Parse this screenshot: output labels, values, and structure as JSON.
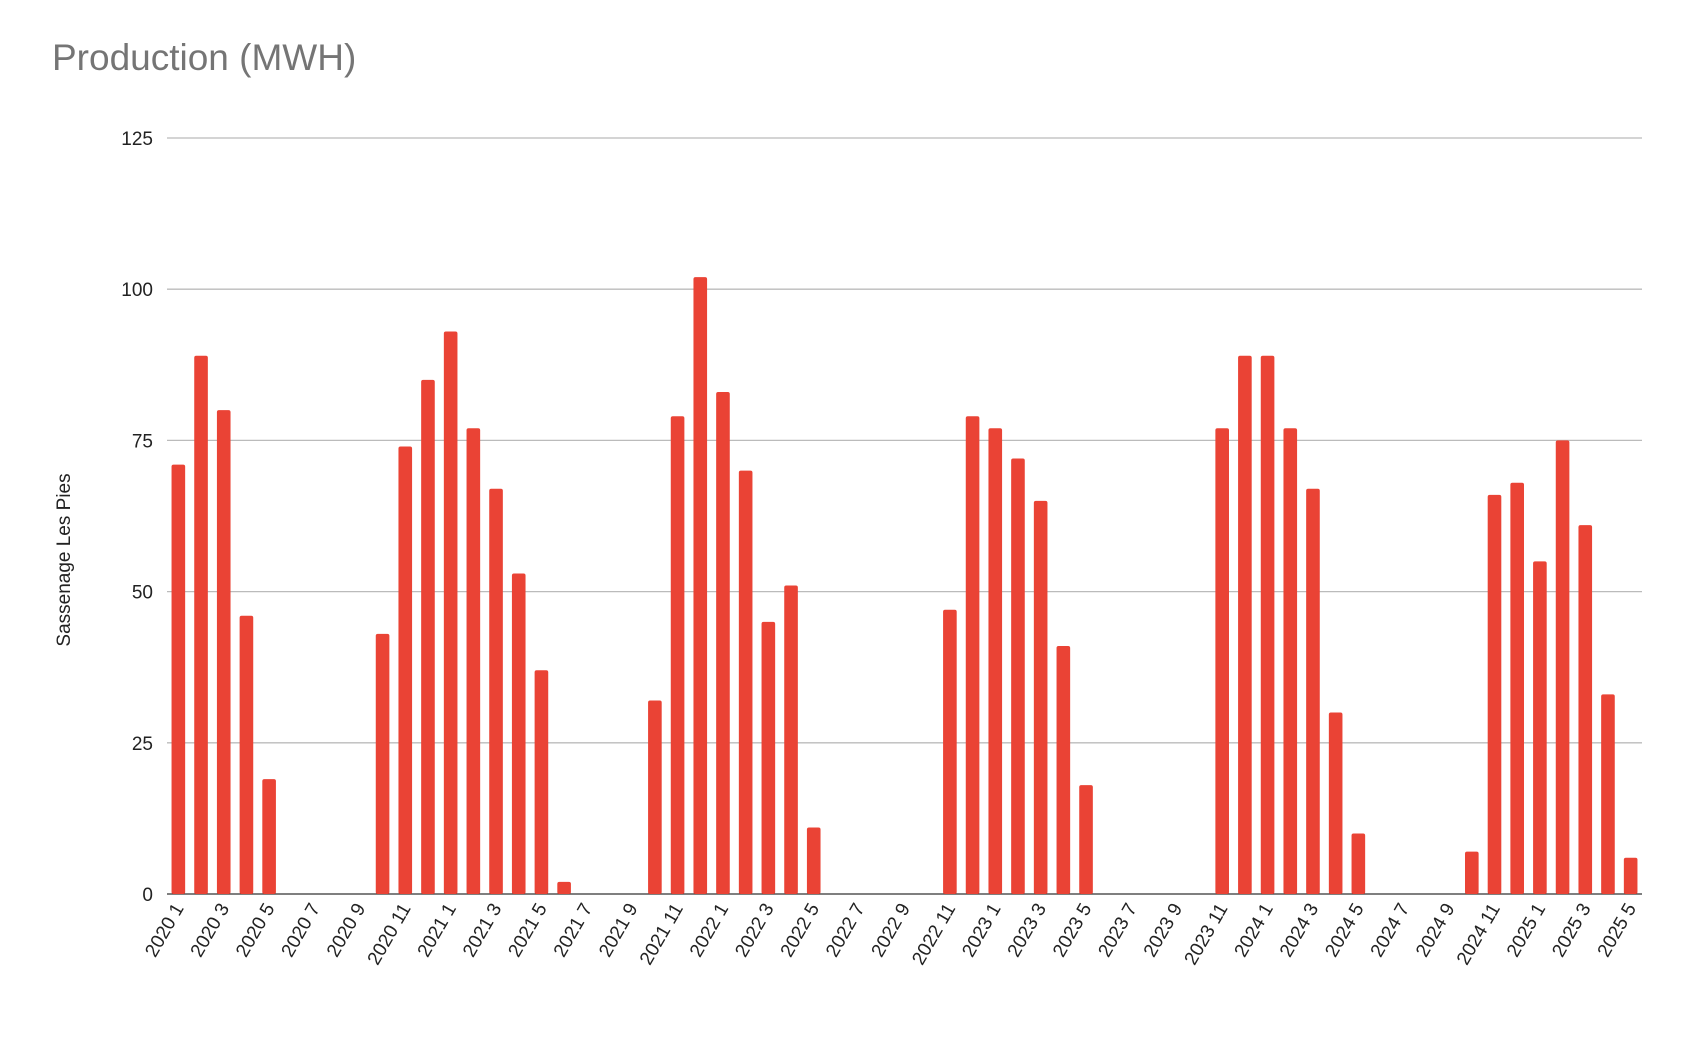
{
  "chart_data": {
    "type": "bar",
    "title": "Production (MWH)",
    "y_label": "Sassenage Les Pies",
    "categories": [
      "2020 1",
      null,
      "2020 3",
      null,
      "2020 5",
      null,
      "2020 7",
      null,
      "2020 9",
      null,
      "2020 11",
      null,
      "2021 1",
      null,
      "2021 3",
      null,
      "2021 5",
      null,
      "2021 7",
      null,
      "2021 9",
      null,
      "2021 11",
      null,
      "2022 1",
      null,
      "2022 3",
      null,
      "2022 5",
      null,
      "2022 7",
      null,
      "2022 9",
      null,
      "2022 11",
      null,
      "2023 1",
      null,
      "2023 3",
      null,
      "2023 5",
      null,
      "2023 7",
      null,
      "2023 9",
      null,
      "2023 11",
      null,
      "2024 1",
      null,
      "2024 3",
      null,
      "2024 5",
      null,
      "2024 7",
      null,
      "2024 9",
      null,
      "2024 11",
      null,
      "2025 1",
      null,
      "2025 3",
      null,
      "2025 5"
    ],
    "values": [
      71,
      89,
      80,
      46,
      19,
      0,
      0,
      0,
      0,
      43,
      74,
      85,
      93,
      77,
      67,
      53,
      37,
      2,
      0,
      0,
      0,
      32,
      79,
      102,
      83,
      70,
      45,
      51,
      11,
      0,
      0,
      0,
      0,
      0,
      47,
      79,
      77,
      72,
      65,
      41,
      18,
      0,
      0,
      0,
      0,
      0,
      77,
      89,
      89,
      77,
      67,
      30,
      10,
      0,
      0,
      0,
      0,
      7,
      66,
      68,
      55,
      75,
      61,
      33,
      6
    ],
    "color": "#ea4335",
    "ylim": [
      0,
      125
    ],
    "yticks": [
      0,
      25,
      50,
      75,
      100,
      125
    ],
    "grid": true
  }
}
